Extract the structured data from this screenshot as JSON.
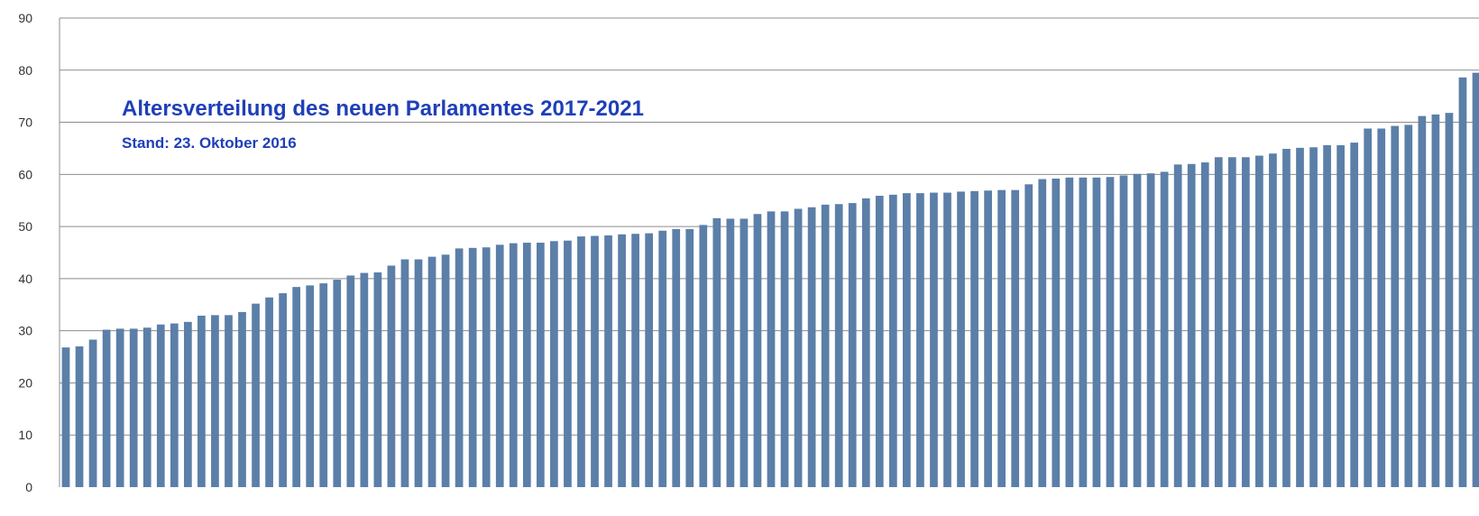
{
  "chart_data": {
    "type": "bar",
    "title": "Altersverteilung des neuen Parlamentes 2017-2021",
    "subtitle": "Stand: 23. Oktober 2016",
    "xlabel": "",
    "ylabel": "",
    "ylim": [
      0,
      90
    ],
    "y_ticks": [
      "0",
      "10",
      "20",
      "30",
      "40",
      "50",
      "60",
      "70",
      "80",
      "90"
    ],
    "grid": true,
    "colors": {
      "bar": "#5b7fa8",
      "title": "#1f3fb8",
      "grid": "#8c8c8c"
    },
    "values": [
      26.8,
      27.0,
      28.3,
      30.2,
      30.4,
      30.4,
      30.6,
      31.2,
      31.4,
      31.7,
      32.9,
      33.0,
      33.0,
      33.6,
      35.2,
      36.4,
      37.2,
      38.4,
      38.7,
      39.1,
      39.8,
      40.6,
      41.1,
      41.2,
      42.5,
      43.7,
      43.7,
      44.2,
      44.6,
      45.8,
      45.9,
      46.0,
      46.5,
      46.8,
      46.9,
      46.9,
      47.2,
      47.3,
      48.1,
      48.2,
      48.3,
      48.5,
      48.6,
      48.7,
      49.2,
      49.5,
      49.5,
      50.3,
      51.6,
      51.5,
      51.5,
      52.4,
      52.9,
      52.9,
      53.4,
      53.7,
      54.2,
      54.3,
      54.5,
      55.4,
      55.9,
      56.1,
      56.4,
      56.4,
      56.5,
      56.5,
      56.7,
      56.8,
      56.9,
      57.0,
      57.0,
      58.1,
      59.1,
      59.2,
      59.4,
      59.4,
      59.4,
      59.5,
      59.8,
      60.1,
      60.2,
      60.5,
      61.9,
      62.0,
      62.3,
      63.3,
      63.3,
      63.3,
      63.6,
      64.0,
      64.9,
      65.1,
      65.2,
      65.6,
      65.6,
      66.1,
      68.8,
      68.8,
      69.3,
      69.5,
      71.2,
      71.5,
      71.8,
      78.6,
      79.5
    ]
  }
}
